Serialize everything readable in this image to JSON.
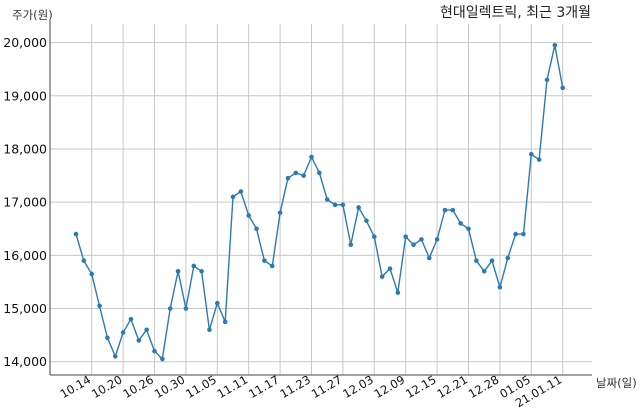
{
  "chart_data": {
    "type": "line",
    "title": "현대일렉트릭, 최근 3개월",
    "ylabel": "주가(원)",
    "xlabel": "날짜(일)",
    "ylim": [
      13750,
      20350
    ],
    "yticks": [
      14000,
      15000,
      16000,
      17000,
      18000,
      19000,
      20000
    ],
    "ytick_labels": [
      "14,000",
      "15,000",
      "16,000",
      "17,000",
      "18,000",
      "19,000",
      "20,000"
    ],
    "xtick_labels": [
      "10.14",
      "10.20",
      "10.26",
      "10.30",
      "11.05",
      "11.11",
      "11.17",
      "11.23",
      "11.27",
      "12.03",
      "12.09",
      "12.15",
      "12.21",
      "12.28",
      "01.05",
      "21.01.11"
    ],
    "xtick_index": [
      2,
      6,
      10,
      14,
      18,
      22,
      26,
      30,
      34,
      38,
      42,
      46,
      50,
      54,
      58,
      62
    ],
    "grid": true,
    "values": [
      16400,
      15900,
      15650,
      15050,
      14450,
      14100,
      14550,
      14800,
      14400,
      14600,
      14200,
      14050,
      15000,
      15700,
      15000,
      15800,
      15700,
      14600,
      15100,
      14750,
      17100,
      17200,
      16750,
      16500,
      15900,
      15800,
      16800,
      17450,
      17550,
      17500,
      17850,
      17550,
      17050,
      16950,
      16950,
      16200,
      16900,
      16650,
      16350,
      15600,
      15750,
      15300,
      16350,
      16200,
      16300,
      15950,
      16300,
      16850,
      16850,
      16600,
      16500,
      15900,
      15700,
      15900,
      15400,
      15950,
      16400,
      16400,
      17900,
      17800,
      19300,
      19950,
      19150
    ]
  }
}
